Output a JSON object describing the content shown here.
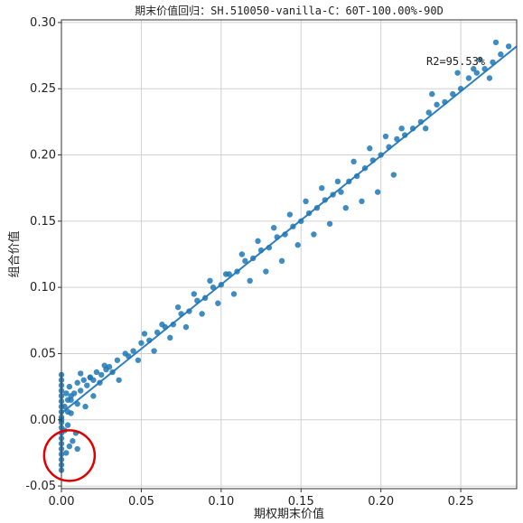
{
  "chart_data": {
    "type": "scatter",
    "title": "期末价值回归：SH.510050-vanilla-C：60T-100.00%-90D",
    "xlabel": "期权期末价值",
    "ylabel": "组合价值",
    "xlim": [
      0.0,
      0.285
    ],
    "ylim": [
      -0.052,
      0.302
    ],
    "x_ticks": [
      "0.00",
      "0.05",
      "0.10",
      "0.15",
      "0.20",
      "0.25"
    ],
    "y_ticks": [
      "-0.05",
      "0.00",
      "0.05",
      "0.10",
      "0.15",
      "0.20",
      "0.25",
      "0.30"
    ],
    "grid": true,
    "annotation": "R2=95.53%",
    "regression_line": {
      "x": [
        0.0,
        0.285
      ],
      "y": [
        0.005,
        0.282
      ]
    },
    "highlight_circle": {
      "center": [
        0.005,
        -0.027
      ],
      "description": "red circle"
    },
    "series": [
      {
        "x": [
          0.0,
          0.0,
          0.0,
          0.0,
          0.0,
          0.0,
          0.0,
          0.0,
          0.0,
          0.0,
          0.0,
          0.0,
          0.0,
          0.0,
          0.0,
          0.0,
          0.0,
          0.0,
          0.0,
          0.0,
          0.002,
          0.003,
          0.004,
          0.005,
          0.006,
          0.008,
          0.01,
          0.012,
          0.014,
          0.016,
          0.018,
          0.02,
          0.022,
          0.025,
          0.028,
          0.03,
          0.004,
          0.006,
          0.01,
          0.012,
          0.015,
          0.018,
          0.02,
          0.024,
          0.027,
          0.032,
          0.035,
          0.04,
          0.045,
          0.05,
          0.055,
          0.06,
          0.065,
          0.07,
          0.075,
          0.08,
          0.085,
          0.09,
          0.095,
          0.1,
          0.036,
          0.042,
          0.048,
          0.052,
          0.058,
          0.063,
          0.068,
          0.073,
          0.078,
          0.083,
          0.088,
          0.093,
          0.098,
          0.103,
          0.105,
          0.11,
          0.115,
          0.12,
          0.125,
          0.13,
          0.135,
          0.14,
          0.145,
          0.15,
          0.155,
          0.16,
          0.165,
          0.17,
          0.108,
          0.113,
          0.118,
          0.123,
          0.128,
          0.133,
          0.138,
          0.143,
          0.148,
          0.153,
          0.158,
          0.163,
          0.168,
          0.173,
          0.175,
          0.18,
          0.185,
          0.19,
          0.195,
          0.2,
          0.205,
          0.21,
          0.215,
          0.22,
          0.178,
          0.183,
          0.188,
          0.193,
          0.198,
          0.203,
          0.208,
          0.213,
          0.225,
          0.23,
          0.235,
          0.24,
          0.245,
          0.25,
          0.255,
          0.26,
          0.265,
          0.27,
          0.275,
          0.28,
          0.232,
          0.248,
          0.262,
          0.272,
          0.228,
          0.258,
          0.268,
          0.005,
          0.007,
          0.003,
          0.009,
          0.004,
          0.002,
          0.006,
          0.01
        ],
        "y": [
          -0.038,
          -0.034,
          -0.03,
          -0.026,
          -0.022,
          -0.018,
          -0.014,
          -0.01,
          -0.006,
          -0.002,
          0.002,
          0.006,
          0.01,
          0.014,
          0.018,
          0.022,
          0.026,
          0.03,
          0.034,
          0.0,
          0.01,
          0.02,
          0.015,
          0.025,
          0.018,
          0.02,
          0.028,
          0.022,
          0.03,
          0.026,
          0.032,
          0.03,
          0.036,
          0.034,
          0.038,
          0.04,
          -0.004,
          0.005,
          0.012,
          0.035,
          0.01,
          0.032,
          0.018,
          0.028,
          0.041,
          0.036,
          0.045,
          0.05,
          0.052,
          0.058,
          0.06,
          0.066,
          0.07,
          0.072,
          0.08,
          0.082,
          0.09,
          0.092,
          0.1,
          0.102,
          0.03,
          0.048,
          0.045,
          0.065,
          0.052,
          0.072,
          0.062,
          0.085,
          0.07,
          0.095,
          0.08,
          0.105,
          0.088,
          0.11,
          0.11,
          0.112,
          0.12,
          0.122,
          0.128,
          0.13,
          0.138,
          0.14,
          0.146,
          0.15,
          0.156,
          0.16,
          0.166,
          0.17,
          0.095,
          0.125,
          0.105,
          0.135,
          0.112,
          0.145,
          0.12,
          0.155,
          0.132,
          0.165,
          0.14,
          0.175,
          0.148,
          0.18,
          0.172,
          0.18,
          0.184,
          0.19,
          0.196,
          0.2,
          0.206,
          0.212,
          0.215,
          0.22,
          0.16,
          0.195,
          0.165,
          0.205,
          0.172,
          0.214,
          0.185,
          0.22,
          0.225,
          0.232,
          0.238,
          0.24,
          0.246,
          0.25,
          0.258,
          0.262,
          0.265,
          0.27,
          0.276,
          0.282,
          0.246,
          0.262,
          0.272,
          0.285,
          0.22,
          0.265,
          0.258,
          -0.02,
          -0.016,
          -0.025,
          -0.01,
          0.006,
          -0.008,
          0.015,
          -0.022
        ]
      }
    ]
  }
}
